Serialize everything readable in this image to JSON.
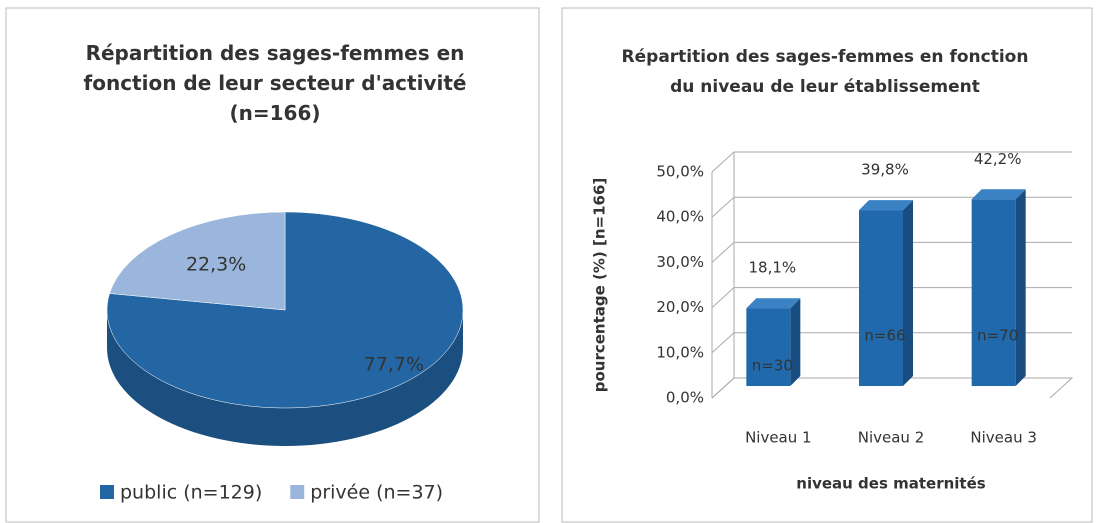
{
  "chart_data": [
    {
      "type": "pie",
      "title": "Répartition des sages-femmes en fonction de leur secteur d'activité (n=166)",
      "series": [
        {
          "name": "public (n=129)",
          "color": "#2466a3",
          "values": [
            77.7
          ],
          "value_labels": [
            "77,7%"
          ]
        },
        {
          "name": "privée (n=37)",
          "color": "#9ab6dc",
          "values": [
            22.3
          ],
          "value_labels": [
            "22,3%"
          ]
        }
      ],
      "legend": "bottom"
    },
    {
      "type": "bar",
      "title": "Répartition des sages-femmes en fonction du niveau de leur établissement",
      "xlabel": "niveau des maternités",
      "ylabel": "pourcentage (%)  [n=166]",
      "categories": [
        "Niveau 1",
        "Niveau 2",
        "Niveau 3"
      ],
      "values": [
        18.1,
        39.8,
        42.2
      ],
      "value_labels": [
        "18,1%",
        "39,8%",
        "42,2%"
      ],
      "count_labels": [
        "n=30",
        "n=66",
        "n=70"
      ],
      "color": "#2169ad",
      "ylim": [
        0,
        50
      ],
      "yticks": [
        {
          "value": 0,
          "label": "0,0%"
        },
        {
          "value": 10,
          "label": "10,0%"
        },
        {
          "value": 20,
          "label": "20,0%"
        },
        {
          "value": 30,
          "label": "30,0%"
        },
        {
          "value": 40,
          "label": "40,0%"
        },
        {
          "value": 50,
          "label": "50,0%"
        }
      ],
      "grid": true
    }
  ]
}
